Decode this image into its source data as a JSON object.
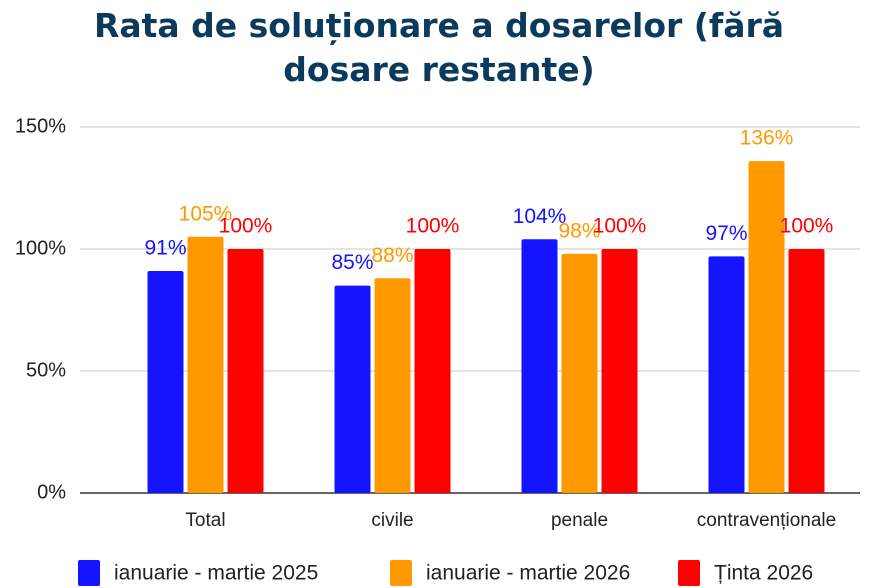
{
  "chart_data": {
    "type": "bar",
    "title": "Rata de soluționare a dosarelor (fără dosare restante)",
    "categories": [
      "Total",
      "civile",
      "penale",
      "contravenționale"
    ],
    "series": [
      {
        "name": "ianuarie - martie 2025",
        "color": "#1414ff",
        "values": [
          91,
          85,
          104,
          97
        ],
        "value_labels": [
          "91%",
          "85%",
          "104%",
          "97%"
        ]
      },
      {
        "name": "ianuarie - martie 2026",
        "color": "#ff9900",
        "values": [
          105,
          88,
          98,
          136
        ],
        "value_labels": [
          "105%",
          "88%",
          "98%",
          "136%"
        ]
      },
      {
        "name": "Ținta 2026",
        "color": "#ff0000",
        "values": [
          100,
          100,
          100,
          100
        ],
        "value_labels": [
          "100%",
          "100%",
          "100%",
          "100%"
        ]
      }
    ],
    "ylim": [
      0,
      150
    ],
    "yticks": [
      {
        "value": 0,
        "label": "0%"
      },
      {
        "value": 50,
        "label": "50%"
      },
      {
        "value": 100,
        "label": "100%"
      },
      {
        "value": 150,
        "label": "150%"
      }
    ],
    "grid": true,
    "legend": "bottom"
  }
}
